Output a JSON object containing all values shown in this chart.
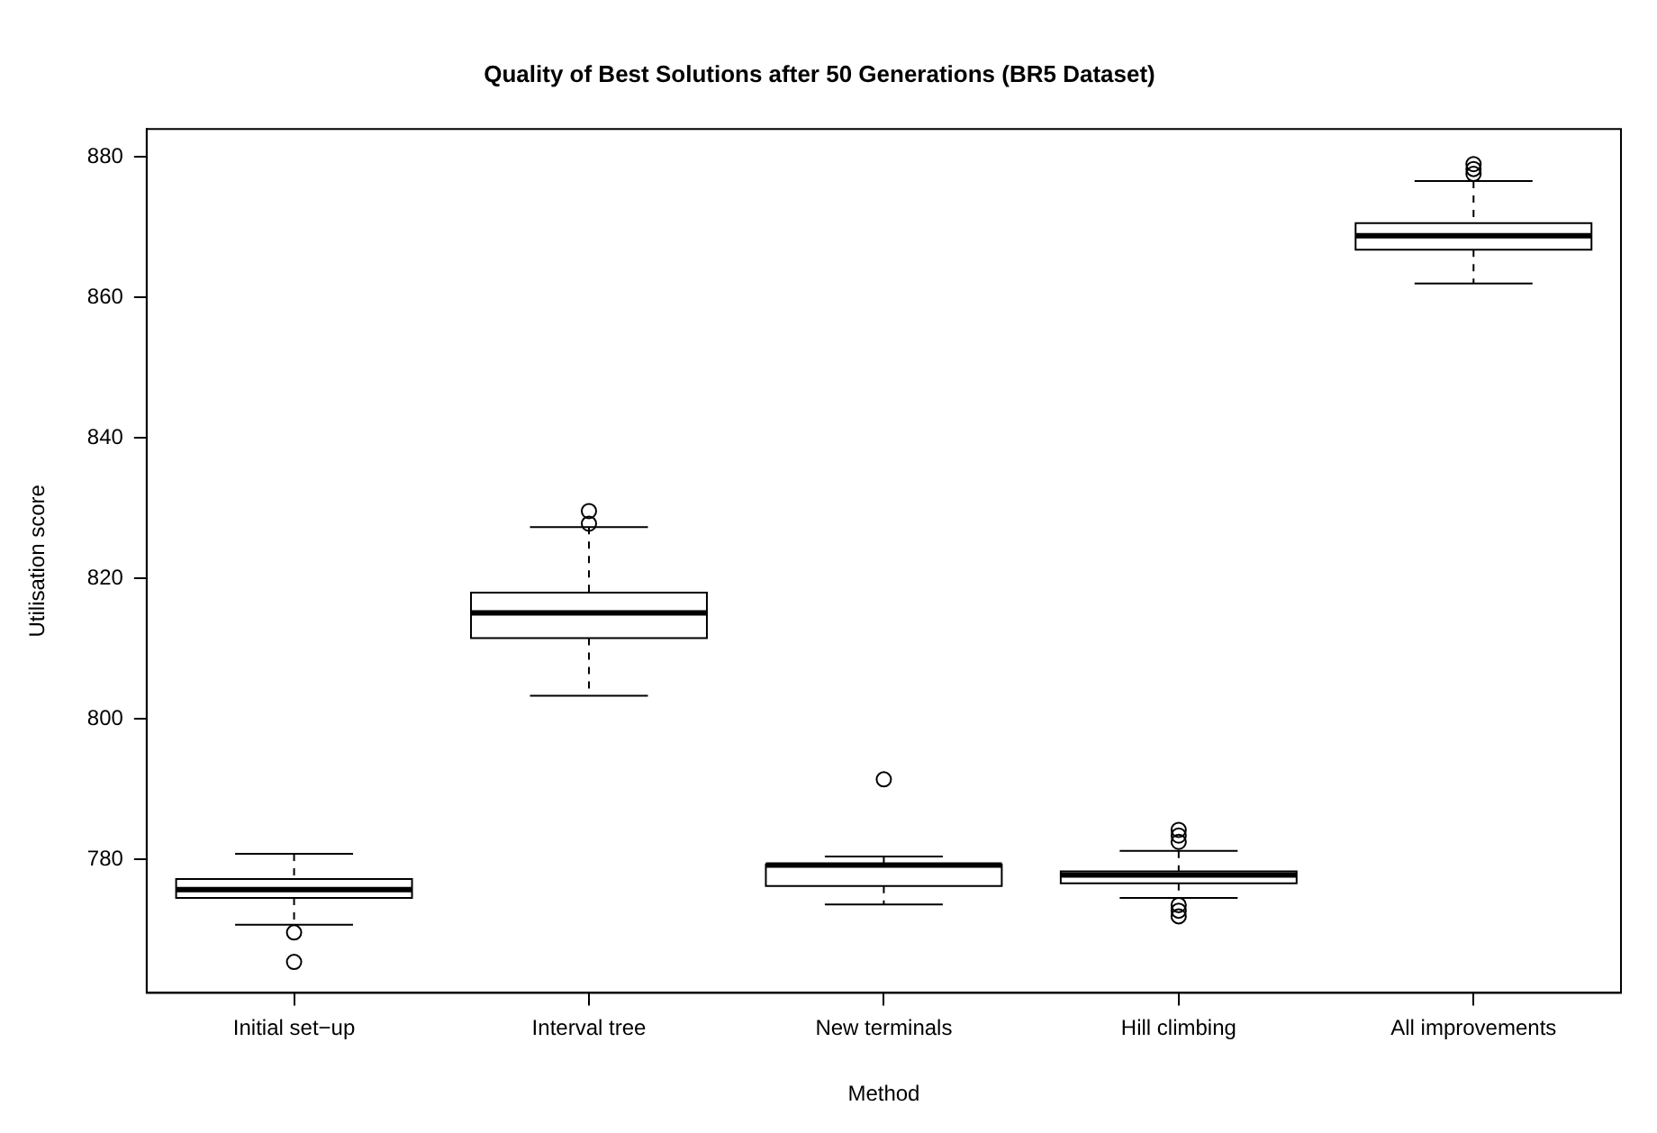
{
  "chart_data": {
    "type": "box",
    "title": "Quality of Best Solutions after 50 Generations (BR5 Dataset)",
    "xlabel": "Method",
    "ylabel": "Utilisation score",
    "categories": [
      "Initial set−up",
      "Interval tree",
      "New terminals",
      "Hill climbing",
      "All improvements"
    ],
    "boxes": [
      {
        "low": 770.7,
        "q1": 774.5,
        "median": 775.7,
        "q3": 777.2,
        "high": 780.8,
        "outliers": [
          769.6,
          765.4
        ]
      },
      {
        "low": 803.3,
        "q1": 811.5,
        "median": 815.1,
        "q3": 818.0,
        "high": 827.3,
        "outliers": [
          829.6,
          827.8
        ]
      },
      {
        "low": 773.6,
        "q1": 776.2,
        "median": 779.2,
        "q3": 779.3,
        "high": 780.4,
        "outliers": [
          791.4
        ]
      },
      {
        "low": 774.5,
        "q1": 776.6,
        "median": 777.8,
        "q3": 778.3,
        "high": 781.2,
        "outliers": [
          784.2,
          783.4,
          782.5,
          773.5,
          772.7,
          771.9
        ]
      },
      {
        "low": 862.0,
        "q1": 866.8,
        "median": 868.8,
        "q3": 870.6,
        "high": 876.6,
        "outliers": [
          879.0,
          878.3,
          877.6
        ]
      }
    ],
    "color": "#000000",
    "ylim": [
      761,
      884
    ],
    "yticks": [
      780,
      800,
      820,
      840,
      860,
      880
    ],
    "grid": false,
    "legend": false
  }
}
